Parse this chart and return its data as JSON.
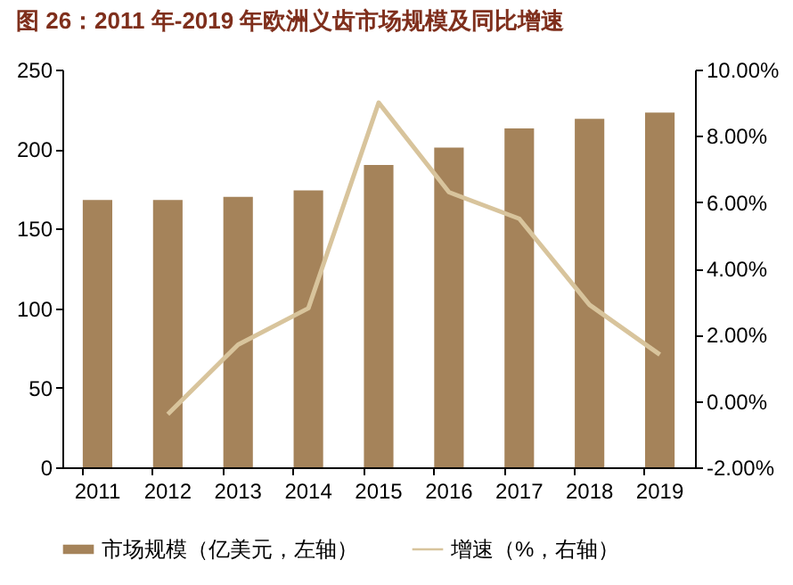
{
  "chart_data": {
    "type": "bar",
    "title": "图 26：2011 年-2019 年欧洲义齿市场规模及同比增速",
    "categories": [
      "2011",
      "2012",
      "2013",
      "2014",
      "2015",
      "2016",
      "2017",
      "2018",
      "2019"
    ],
    "series": [
      {
        "name": "市场规模（亿美元，左轴）",
        "color": "#a5835a",
        "values": [
          168,
          168,
          170,
          174,
          190,
          201,
          213,
          219,
          223
        ]
      },
      {
        "name": "增速（%，右轴）",
        "type": "line",
        "axis": "y2",
        "color": "#d8c49c",
        "values": [
          null,
          -0.4,
          1.7,
          2.8,
          9.0,
          6.3,
          5.5,
          2.9,
          1.4
        ]
      }
    ],
    "ylim": [
      0,
      250
    ],
    "yticks": [
      0,
      50,
      100,
      150,
      200,
      250
    ],
    "y2lim": [
      -2,
      10
    ],
    "y2ticks": [
      {
        "value": -2,
        "label": "-2.00%"
      },
      {
        "value": 0,
        "label": "0.00%"
      },
      {
        "value": 2,
        "label": "2.00%"
      },
      {
        "value": 4,
        "label": "4.00%"
      },
      {
        "value": 6,
        "label": "6.00%"
      },
      {
        "value": 8,
        "label": "8.00%"
      },
      {
        "value": 10,
        "label": "10.00%"
      }
    ],
    "legend": "bottom",
    "grid": false,
    "marker": "none",
    "line_style": "solid"
  }
}
